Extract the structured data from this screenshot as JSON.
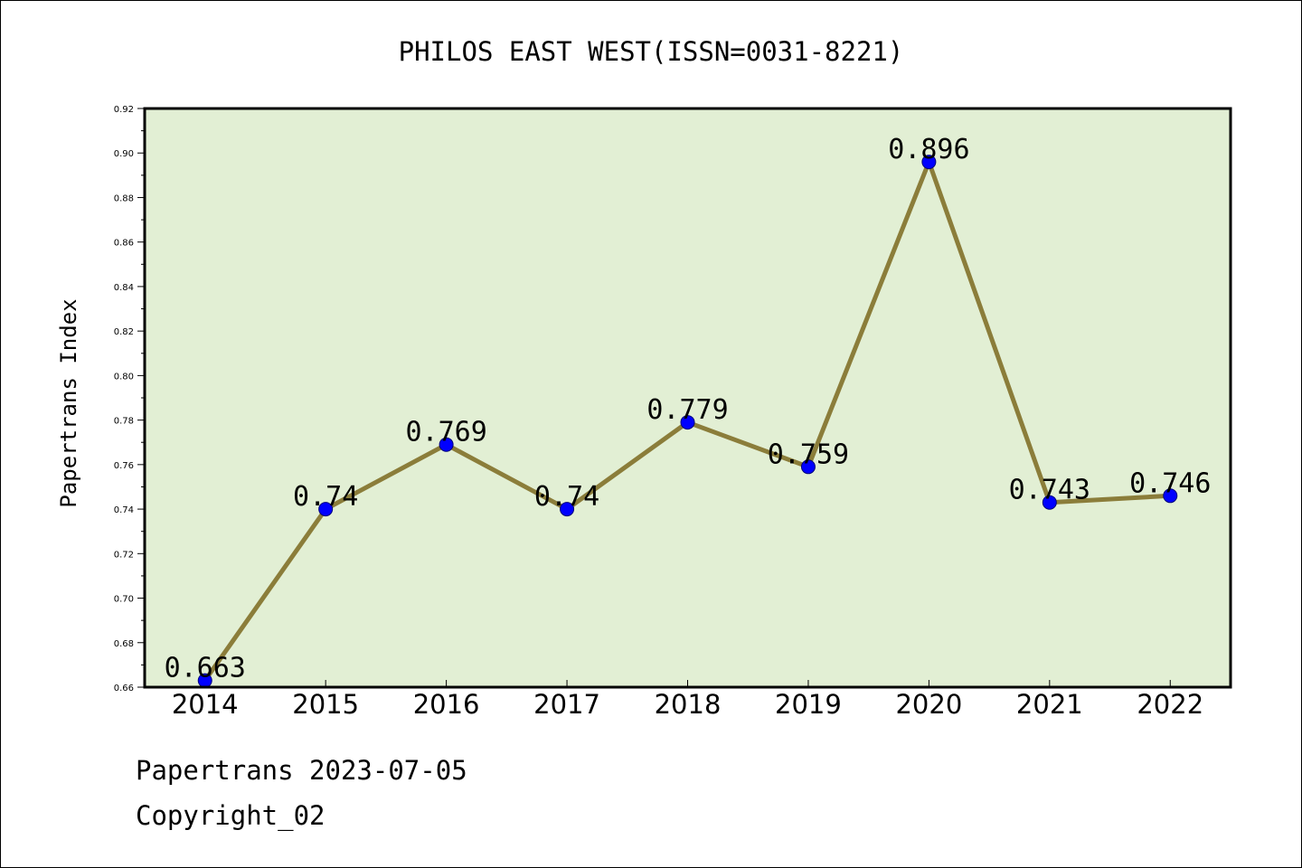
{
  "chart_data": {
    "type": "line",
    "title": "PHILOS EAST WEST(ISSN=0031-8221)",
    "xlabel": "",
    "ylabel": "Papertrans Index",
    "categories": [
      "2014",
      "2015",
      "2016",
      "2017",
      "2018",
      "2019",
      "2020",
      "2021",
      "2022"
    ],
    "values": [
      0.663,
      0.74,
      0.769,
      0.74,
      0.779,
      0.759,
      0.896,
      0.743,
      0.746
    ],
    "data_labels": [
      "0.663",
      "0.74",
      "0.769",
      "0.74",
      "0.779",
      "0.759",
      "0.896",
      "0.743",
      "0.746"
    ],
    "ylim": [
      0.66,
      0.92
    ],
    "yticks": [
      "0.66",
      "0.68",
      "0.70",
      "0.72",
      "0.74",
      "0.76",
      "0.78",
      "0.80",
      "0.82",
      "0.84",
      "0.86",
      "0.88",
      "0.90",
      "0.92"
    ],
    "grid": false,
    "legend": "none",
    "colors": {
      "plot_background": "#e2efd4",
      "line": "#8b7d3a",
      "marker": "#0000ff"
    }
  },
  "footer": {
    "date_text": "Papertrans 2023-07-05",
    "copyright_text": "Copyright_02"
  }
}
